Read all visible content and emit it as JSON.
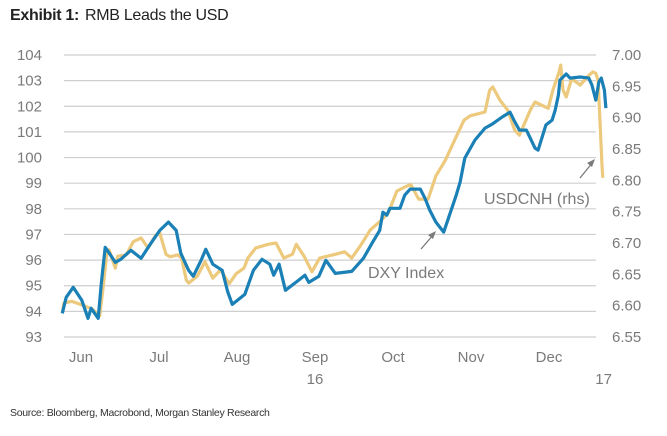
{
  "title": {
    "prefix": "Exhibit 1:",
    "text": "RMB Leads the USD"
  },
  "source": "Source: Bloomberg, Macrobond, Morgan Stanley Research",
  "chart_data": {
    "type": "line",
    "title": "Exhibit 1: RMB Leads the USD",
    "x_unit": "months since 1 Jun 2016",
    "x_ticks": [
      {
        "label": "Jun",
        "x": 0.5
      },
      {
        "label": "Jul",
        "x": 1.5
      },
      {
        "label": "Aug",
        "x": 2.5
      },
      {
        "label": "Sep",
        "x": 3.5
      },
      {
        "label": "Oct",
        "x": 4.5
      },
      {
        "label": "Nov",
        "x": 5.5
      },
      {
        "label": "Dec",
        "x": 6.5
      }
    ],
    "year_labels": [
      {
        "label": "16",
        "x": 3.5
      },
      {
        "label": "17",
        "x": 7.2
      }
    ],
    "y_left": {
      "ticks": [
        "104",
        "103",
        "102",
        "101",
        "100",
        "99",
        "98",
        "97",
        "96",
        "95",
        "94",
        "93"
      ],
      "range": [
        93,
        104
      ]
    },
    "y_right": {
      "ticks": [
        "7.00",
        "6.95",
        "6.90",
        "6.85",
        "6.80",
        "6.75",
        "6.70",
        "6.65",
        "6.60",
        "6.55"
      ],
      "range": [
        6.55,
        7.0
      ]
    },
    "grid": true,
    "colors": {
      "dxy": "#1a80b6",
      "cnh": "#ecc97c"
    },
    "series": [
      {
        "name": "DXY Index",
        "axis": "left",
        "points": [
          [
            0.26,
            93.92
          ],
          [
            0.31,
            94.55
          ],
          [
            0.4,
            94.94
          ],
          [
            0.51,
            94.43
          ],
          [
            0.59,
            93.73
          ],
          [
            0.63,
            94.12
          ],
          [
            0.72,
            93.73
          ],
          [
            0.76,
            95.09
          ],
          [
            0.81,
            96.5
          ],
          [
            0.88,
            96.19
          ],
          [
            0.94,
            95.91
          ],
          [
            1.01,
            96.03
          ],
          [
            1.14,
            96.38
          ],
          [
            1.27,
            96.07
          ],
          [
            1.38,
            96.58
          ],
          [
            1.51,
            97.16
          ],
          [
            1.62,
            97.48
          ],
          [
            1.72,
            97.16
          ],
          [
            1.78,
            96.27
          ],
          [
            1.88,
            95.6
          ],
          [
            1.94,
            95.37
          ],
          [
            2.04,
            95.99
          ],
          [
            2.1,
            96.42
          ],
          [
            2.19,
            95.84
          ],
          [
            2.31,
            95.6
          ],
          [
            2.38,
            94.78
          ],
          [
            2.44,
            94.27
          ],
          [
            2.6,
            94.66
          ],
          [
            2.71,
            95.6
          ],
          [
            2.82,
            96.03
          ],
          [
            2.92,
            95.84
          ],
          [
            2.97,
            95.41
          ],
          [
            3.04,
            95.84
          ],
          [
            3.12,
            94.82
          ],
          [
            3.27,
            95.17
          ],
          [
            3.37,
            95.41
          ],
          [
            3.42,
            95.13
          ],
          [
            3.55,
            95.37
          ],
          [
            3.64,
            95.99
          ],
          [
            3.76,
            95.48
          ],
          [
            3.97,
            95.56
          ],
          [
            4.12,
            96.07
          ],
          [
            4.24,
            96.7
          ],
          [
            4.33,
            97.16
          ],
          [
            4.37,
            97.87
          ],
          [
            4.42,
            97.75
          ],
          [
            4.46,
            98.02
          ],
          [
            4.59,
            98.02
          ],
          [
            4.65,
            98.53
          ],
          [
            4.72,
            98.77
          ],
          [
            4.85,
            98.77
          ],
          [
            4.91,
            98.41
          ],
          [
            4.97,
            97.95
          ],
          [
            5.05,
            97.48
          ],
          [
            5.15,
            97.09
          ],
          [
            5.21,
            97.63
          ],
          [
            5.31,
            98.53
          ],
          [
            5.36,
            99.04
          ],
          [
            5.42,
            99.98
          ],
          [
            5.55,
            100.68
          ],
          [
            5.68,
            101.15
          ],
          [
            5.77,
            101.3
          ],
          [
            5.9,
            101.58
          ],
          [
            6.0,
            101.77
          ],
          [
            6.05,
            101.46
          ],
          [
            6.12,
            101.07
          ],
          [
            6.21,
            101.07
          ],
          [
            6.32,
            100.37
          ],
          [
            6.36,
            100.29
          ],
          [
            6.46,
            101.27
          ],
          [
            6.54,
            101.46
          ],
          [
            6.58,
            101.85
          ],
          [
            6.62,
            102.44
          ],
          [
            6.64,
            103.02
          ],
          [
            6.72,
            103.26
          ],
          [
            6.77,
            103.1
          ],
          [
            6.9,
            103.14
          ],
          [
            7.01,
            103.1
          ],
          [
            7.05,
            102.83
          ],
          [
            7.1,
            102.24
          ],
          [
            7.14,
            102.95
          ],
          [
            7.17,
            103.1
          ],
          [
            7.21,
            102.63
          ],
          [
            7.23,
            101.93
          ]
        ]
      },
      {
        "name": "USDCNH (rhs)",
        "axis": "right",
        "points": [
          [
            0.26,
            6.588
          ],
          [
            0.28,
            6.604
          ],
          [
            0.38,
            6.607
          ],
          [
            0.54,
            6.6
          ],
          [
            0.64,
            6.595
          ],
          [
            0.74,
            6.584
          ],
          [
            0.78,
            6.625
          ],
          [
            0.83,
            6.682
          ],
          [
            0.86,
            6.689
          ],
          [
            0.94,
            6.66
          ],
          [
            0.97,
            6.679
          ],
          [
            1.08,
            6.681
          ],
          [
            1.17,
            6.702
          ],
          [
            1.27,
            6.708
          ],
          [
            1.36,
            6.692
          ],
          [
            1.46,
            6.713
          ],
          [
            1.51,
            6.716
          ],
          [
            1.59,
            6.682
          ],
          [
            1.64,
            6.678
          ],
          [
            1.74,
            6.681
          ],
          [
            1.79,
            6.676
          ],
          [
            1.85,
            6.641
          ],
          [
            1.88,
            6.636
          ],
          [
            1.99,
            6.647
          ],
          [
            2.09,
            6.67
          ],
          [
            2.19,
            6.644
          ],
          [
            2.29,
            6.657
          ],
          [
            2.4,
            6.635
          ],
          [
            2.49,
            6.651
          ],
          [
            2.59,
            6.66
          ],
          [
            2.64,
            6.676
          ],
          [
            2.74,
            6.692
          ],
          [
            2.9,
            6.698
          ],
          [
            3.0,
            6.7
          ],
          [
            3.1,
            6.676
          ],
          [
            3.21,
            6.682
          ],
          [
            3.26,
            6.698
          ],
          [
            3.36,
            6.679
          ],
          [
            3.46,
            6.654
          ],
          [
            3.56,
            6.676
          ],
          [
            3.76,
            6.682
          ],
          [
            3.88,
            6.686
          ],
          [
            3.97,
            6.676
          ],
          [
            4.08,
            6.695
          ],
          [
            4.21,
            6.721
          ],
          [
            4.33,
            6.734
          ],
          [
            4.44,
            6.748
          ],
          [
            4.55,
            6.783
          ],
          [
            4.68,
            6.791
          ],
          [
            4.73,
            6.793
          ],
          [
            4.83,
            6.77
          ],
          [
            4.95,
            6.77
          ],
          [
            5.05,
            6.807
          ],
          [
            5.17,
            6.832
          ],
          [
            5.29,
            6.864
          ],
          [
            5.41,
            6.896
          ],
          [
            5.49,
            6.903
          ],
          [
            5.68,
            6.909
          ],
          [
            5.74,
            6.944
          ],
          [
            5.78,
            6.949
          ],
          [
            5.87,
            6.928
          ],
          [
            5.97,
            6.912
          ],
          [
            6.06,
            6.88
          ],
          [
            6.12,
            6.872
          ],
          [
            6.26,
            6.912
          ],
          [
            6.32,
            6.925
          ],
          [
            6.49,
            6.915
          ],
          [
            6.55,
            6.944
          ],
          [
            6.63,
            6.973
          ],
          [
            6.65,
            6.984
          ],
          [
            6.68,
            6.944
          ],
          [
            6.72,
            6.933
          ],
          [
            6.79,
            6.962
          ],
          [
            6.9,
            6.952
          ],
          [
            6.99,
            6.965
          ],
          [
            7.06,
            6.973
          ],
          [
            7.1,
            6.971
          ],
          [
            7.13,
            6.96
          ],
          [
            7.15,
            6.904
          ],
          [
            7.18,
            6.824
          ],
          [
            7.19,
            6.804
          ]
        ]
      }
    ],
    "annotations": [
      {
        "text": "DXY Index",
        "series": "DXY Index"
      },
      {
        "text": "USDCNH (rhs)",
        "series": "USDCNH (rhs)"
      }
    ]
  }
}
